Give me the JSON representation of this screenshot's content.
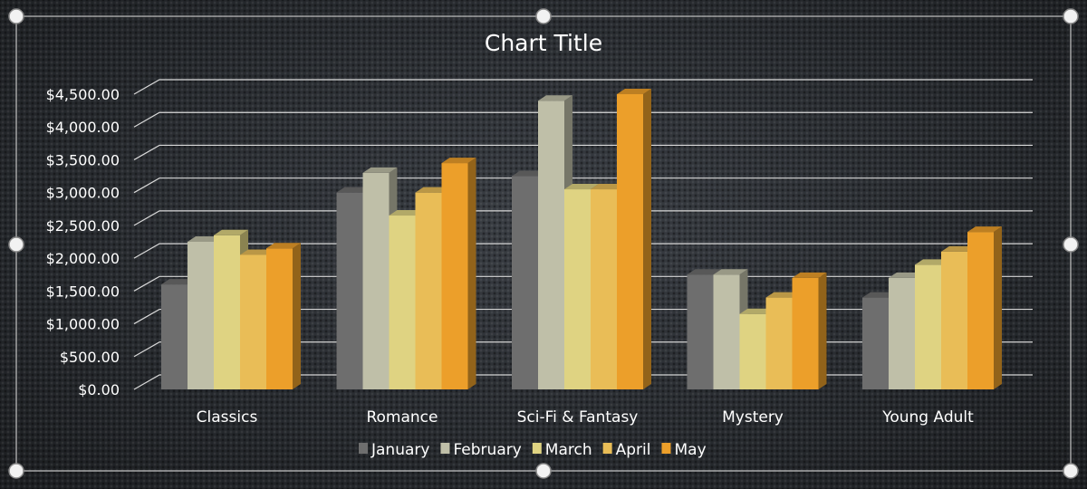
{
  "chart_data": {
    "type": "bar",
    "title": "Chart Title",
    "xlabel": "",
    "ylabel": "",
    "ylim": [
      0,
      4500
    ],
    "yticks": [
      "$0.00",
      "$500.00",
      "$1,000.00",
      "$1,500.00",
      "$2,000.00",
      "$2,500.00",
      "$3,000.00",
      "$3,500.00",
      "$4,000.00",
      "$4,500.00"
    ],
    "grid": true,
    "legend_position": "bottom",
    "categories": [
      "Classics",
      "Romance",
      "Sci-Fi & Fantasy",
      "Mystery",
      "Young Adult"
    ],
    "series": [
      {
        "name": "January",
        "color": "#6e6e6e",
        "values": [
          1600,
          3000,
          3250,
          1750,
          1400
        ]
      },
      {
        "name": "February",
        "color": "#bfbfa8",
        "values": [
          2250,
          3300,
          4400,
          1750,
          1700
        ]
      },
      {
        "name": "March",
        "color": "#dfd382",
        "values": [
          2350,
          2650,
          3050,
          1150,
          1900
        ]
      },
      {
        "name": "April",
        "color": "#e9bd57",
        "values": [
          2050,
          3000,
          3050,
          1400,
          2100
        ]
      },
      {
        "name": "May",
        "color": "#ec9f2a",
        "values": [
          2150,
          3450,
          4500,
          1700,
          2400
        ]
      }
    ]
  }
}
